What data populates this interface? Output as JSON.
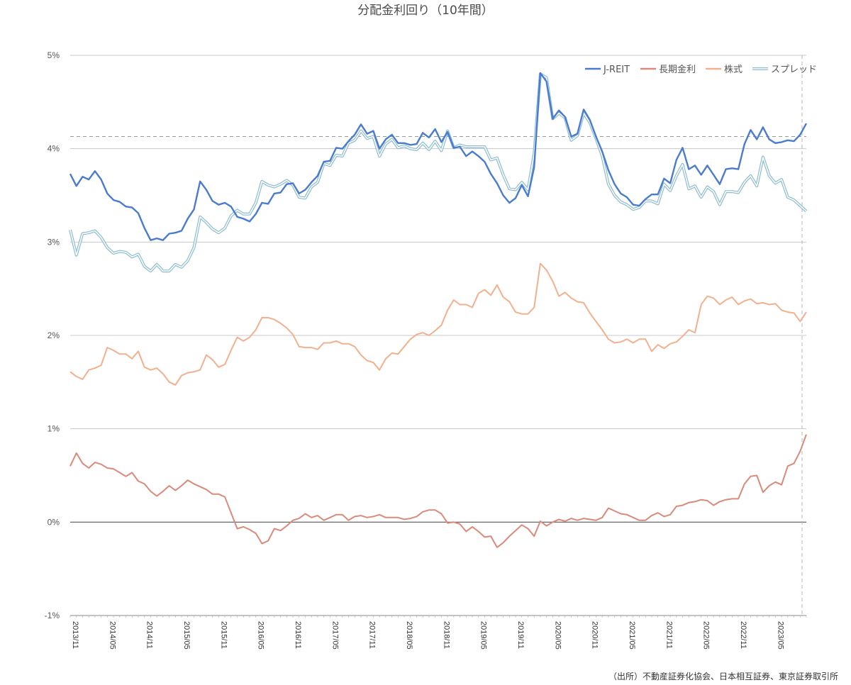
{
  "chart_data": {
    "type": "line",
    "title": "分配金利回り（10年間）",
    "source": "（出所）不動産証券化協会、日本相互証券、東京証券取引所",
    "ylim": [
      -1,
      5
    ],
    "yticks": [
      5,
      4,
      3,
      2,
      1,
      0,
      -1
    ],
    "ytick_labels": [
      "5%",
      "4%",
      "3%",
      "2%",
      "1%",
      "0%",
      "-1%"
    ],
    "x_start": "2013/11",
    "x_tick_labels": [
      "2013/11",
      "2014/05",
      "2014/11",
      "2015/05",
      "2015/11",
      "2016/05",
      "2016/11",
      "2017/05",
      "2017/11",
      "2018/05",
      "2018/11",
      "2019/05",
      "2019/11",
      "2020/05",
      "2020/11",
      "2021/05",
      "2021/11",
      "2022/05",
      "2022/11",
      "2023/05"
    ],
    "reference_line": 4.13,
    "grid": true,
    "legend_position": "top-right",
    "colors": {
      "J-REIT": "#4a7bd0",
      "長期金利": "#d98a7a",
      "株式": "#f2b08d",
      "スプレッド": "#8bbcd0"
    },
    "series": [
      {
        "name": "J-REIT",
        "values": [
          3.73,
          3.6,
          3.7,
          3.67,
          3.76,
          3.67,
          3.52,
          3.45,
          3.43,
          3.38,
          3.37,
          3.31,
          3.15,
          3.02,
          3.04,
          3.02,
          3.09,
          3.1,
          3.12,
          3.25,
          3.35,
          3.65,
          3.56,
          3.44,
          3.4,
          3.42,
          3.38,
          3.27,
          3.25,
          3.22,
          3.3,
          3.42,
          3.41,
          3.52,
          3.53,
          3.62,
          3.63,
          3.52,
          3.56,
          3.64,
          3.71,
          3.86,
          3.87,
          4.01,
          4.0,
          4.08,
          4.15,
          4.26,
          4.16,
          4.19,
          4.0,
          4.1,
          4.15,
          4.06,
          4.06,
          4.04,
          4.05,
          4.17,
          4.12,
          4.21,
          4.07,
          4.18,
          4.01,
          4.02,
          3.92,
          3.97,
          3.92,
          3.86,
          3.73,
          3.63,
          3.5,
          3.42,
          3.47,
          3.61,
          3.49,
          3.8,
          4.81,
          4.72,
          4.32,
          4.41,
          4.34,
          4.13,
          4.16,
          4.42,
          4.31,
          4.13,
          3.97,
          3.77,
          3.62,
          3.52,
          3.48,
          3.4,
          3.39,
          3.46,
          3.51,
          3.51,
          3.68,
          3.63,
          3.88,
          4.01,
          3.78,
          3.82,
          3.72,
          3.82,
          3.72,
          3.62,
          3.78,
          3.79,
          3.78,
          4.05,
          4.2,
          4.1,
          4.23,
          4.1,
          4.06,
          4.07,
          4.09,
          4.08,
          4.15,
          4.27
        ]
      },
      {
        "name": "長期金利",
        "values": [
          0.6,
          0.74,
          0.63,
          0.58,
          0.64,
          0.62,
          0.58,
          0.57,
          0.53,
          0.49,
          0.53,
          0.44,
          0.41,
          0.33,
          0.28,
          0.33,
          0.39,
          0.34,
          0.39,
          0.45,
          0.41,
          0.38,
          0.35,
          0.3,
          0.3,
          0.27,
          0.1,
          -0.07,
          -0.05,
          -0.08,
          -0.12,
          -0.23,
          -0.2,
          -0.07,
          -0.09,
          -0.04,
          0.02,
          0.04,
          0.09,
          0.05,
          0.07,
          0.02,
          0.05,
          0.08,
          0.08,
          0.02,
          0.06,
          0.07,
          0.05,
          0.06,
          0.08,
          0.05,
          0.05,
          0.05,
          0.03,
          0.04,
          0.06,
          0.11,
          0.13,
          0.13,
          0.09,
          -0.01,
          0.0,
          -0.02,
          -0.1,
          -0.05,
          -0.1,
          -0.16,
          -0.15,
          -0.27,
          -0.22,
          -0.15,
          -0.09,
          -0.03,
          -0.07,
          -0.15,
          0.01,
          -0.04,
          0.0,
          0.03,
          0.01,
          0.04,
          0.02,
          0.04,
          0.03,
          0.02,
          0.05,
          0.15,
          0.12,
          0.09,
          0.08,
          0.05,
          0.02,
          0.02,
          0.07,
          0.1,
          0.06,
          0.08,
          0.17,
          0.18,
          0.21,
          0.22,
          0.24,
          0.23,
          0.18,
          0.22,
          0.24,
          0.25,
          0.25,
          0.41,
          0.49,
          0.5,
          0.32,
          0.39,
          0.43,
          0.4,
          0.6,
          0.63,
          0.76,
          0.94
        ]
      },
      {
        "name": "株式",
        "values": [
          1.61,
          1.56,
          1.53,
          1.63,
          1.65,
          1.68,
          1.87,
          1.84,
          1.8,
          1.8,
          1.75,
          1.83,
          1.66,
          1.63,
          1.65,
          1.59,
          1.5,
          1.47,
          1.57,
          1.6,
          1.61,
          1.63,
          1.79,
          1.74,
          1.66,
          1.69,
          1.84,
          1.98,
          1.94,
          1.98,
          2.06,
          2.19,
          2.19,
          2.17,
          2.13,
          2.08,
          2.01,
          1.88,
          1.87,
          1.87,
          1.85,
          1.92,
          1.92,
          1.94,
          1.91,
          1.91,
          1.88,
          1.79,
          1.73,
          1.71,
          1.63,
          1.75,
          1.81,
          1.8,
          1.88,
          1.96,
          2.01,
          2.03,
          2.0,
          2.05,
          2.11,
          2.27,
          2.38,
          2.33,
          2.33,
          2.3,
          2.45,
          2.49,
          2.43,
          2.54,
          2.41,
          2.36,
          2.25,
          2.23,
          2.23,
          2.3,
          2.77,
          2.7,
          2.58,
          2.42,
          2.46,
          2.4,
          2.36,
          2.35,
          2.24,
          2.15,
          2.06,
          1.96,
          1.92,
          1.93,
          1.96,
          1.92,
          1.96,
          1.96,
          1.83,
          1.9,
          1.86,
          1.91,
          1.93,
          1.99,
          2.06,
          2.03,
          2.33,
          2.42,
          2.4,
          2.33,
          2.38,
          2.41,
          2.33,
          2.37,
          2.39,
          2.34,
          2.35,
          2.33,
          2.34,
          2.27,
          2.25,
          2.24,
          2.15,
          2.25
        ]
      },
      {
        "name": "スプレッド",
        "values": [
          3.13,
          2.86,
          3.09,
          3.1,
          3.12,
          3.05,
          2.94,
          2.88,
          2.9,
          2.89,
          2.84,
          2.87,
          2.74,
          2.69,
          2.76,
          2.69,
          2.69,
          2.76,
          2.73,
          2.8,
          2.94,
          3.27,
          3.21,
          3.14,
          3.1,
          3.15,
          3.28,
          3.34,
          3.3,
          3.3,
          3.42,
          3.65,
          3.61,
          3.59,
          3.62,
          3.66,
          3.61,
          3.48,
          3.47,
          3.59,
          3.64,
          3.84,
          3.82,
          3.93,
          3.92,
          4.06,
          4.09,
          4.19,
          4.11,
          4.13,
          3.92,
          4.05,
          4.1,
          4.01,
          4.03,
          4.0,
          3.99,
          4.06,
          3.99,
          4.08,
          3.98,
          4.19,
          4.01,
          4.04,
          4.02,
          4.02,
          4.02,
          4.02,
          3.88,
          3.9,
          3.72,
          3.57,
          3.56,
          3.64,
          3.56,
          3.95,
          4.8,
          4.76,
          4.32,
          4.38,
          4.33,
          4.09,
          4.14,
          4.38,
          4.28,
          4.11,
          3.92,
          3.62,
          3.5,
          3.43,
          3.4,
          3.35,
          3.37,
          3.44,
          3.44,
          3.41,
          3.62,
          3.55,
          3.71,
          3.83,
          3.57,
          3.6,
          3.48,
          3.59,
          3.54,
          3.4,
          3.54,
          3.54,
          3.53,
          3.64,
          3.71,
          3.6,
          3.91,
          3.71,
          3.63,
          3.67,
          3.48,
          3.45,
          3.39,
          3.33
        ]
      }
    ]
  }
}
